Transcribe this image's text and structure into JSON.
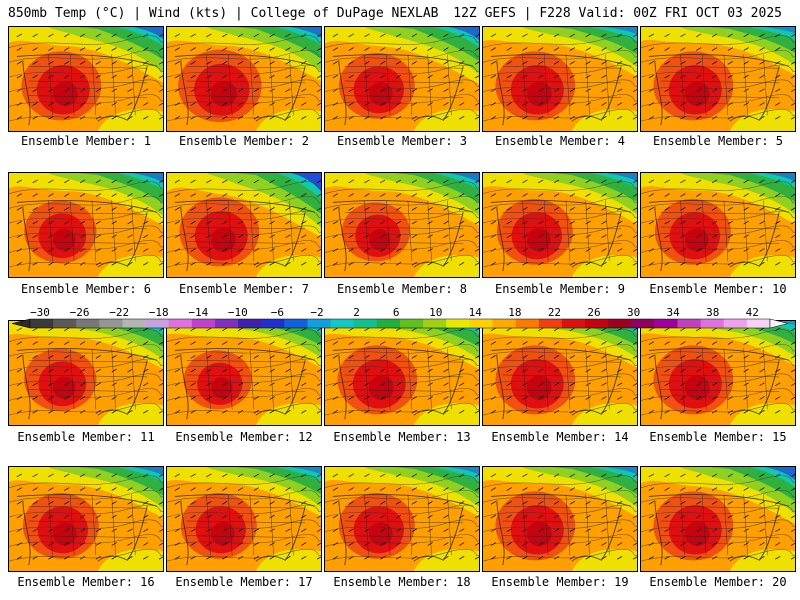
{
  "header": {
    "left": "850mb Temp (°C) | Wind (kts) | College of DuPage NEXLAB",
    "right": "12Z GEFS | F228 Valid: 00Z FRI OCT 03 2025"
  },
  "members": [
    {
      "label": "Ensemble Member: 1",
      "warm_level": 0.8,
      "cold_level": 0.55
    },
    {
      "label": "Ensemble Member: 2",
      "warm_level": 0.85,
      "cold_level": 0.5
    },
    {
      "label": "Ensemble Member: 3",
      "warm_level": 0.75,
      "cold_level": 0.6
    },
    {
      "label": "Ensemble Member: 4",
      "warm_level": 0.8,
      "cold_level": 0.35
    },
    {
      "label": "Ensemble Member: 5",
      "warm_level": 0.8,
      "cold_level": 0.3
    },
    {
      "label": "Ensemble Member: 6",
      "warm_level": 0.7,
      "cold_level": 0.45
    },
    {
      "label": "Ensemble Member: 7",
      "warm_level": 0.8,
      "cold_level": 0.85
    },
    {
      "label": "Ensemble Member: 8",
      "warm_level": 0.65,
      "cold_level": 0.45
    },
    {
      "label": "Ensemble Member: 9",
      "warm_level": 0.75,
      "cold_level": 0.4
    },
    {
      "label": "Ensemble Member: 10",
      "warm_level": 0.75,
      "cold_level": 0.4
    },
    {
      "label": "Ensemble Member: 11",
      "warm_level": 0.7,
      "cold_level": 0.3
    },
    {
      "label": "Ensemble Member: 12",
      "warm_level": 0.65,
      "cold_level": 0.25
    },
    {
      "label": "Ensemble Member: 13",
      "warm_level": 0.8,
      "cold_level": 0.3
    },
    {
      "label": "Ensemble Member: 14",
      "warm_level": 0.8,
      "cold_level": 0.25
    },
    {
      "label": "Ensemble Member: 15",
      "warm_level": 0.8,
      "cold_level": 0.2
    },
    {
      "label": "Ensemble Member: 16",
      "warm_level": 0.75,
      "cold_level": 0.4
    },
    {
      "label": "Ensemble Member: 17",
      "warm_level": 0.75,
      "cold_level": 0.35
    },
    {
      "label": "Ensemble Member: 18",
      "warm_level": 0.75,
      "cold_level": 0.35
    },
    {
      "label": "Ensemble Member: 19",
      "warm_level": 0.8,
      "cold_level": 0.35
    },
    {
      "label": "Ensemble Member: 20",
      "warm_level": 0.8,
      "cold_level": 0.6
    }
  ],
  "colorbar": {
    "ticks": [
      "−30",
      "−26",
      "−22",
      "−18",
      "−14",
      "−10",
      "−6",
      "−2",
      "2",
      "6",
      "10",
      "14",
      "18",
      "22",
      "26",
      "30",
      "34",
      "38",
      "42"
    ],
    "colors": [
      "#3a3a3a",
      "#5a5a5a",
      "#787878",
      "#969696",
      "#b4b4b4",
      "#c8a0e0",
      "#e070e0",
      "#c040d0",
      "#8030c0",
      "#4020b0",
      "#2030d0",
      "#1060e0",
      "#10a0e0",
      "#10c8c8",
      "#10c090",
      "#20b040",
      "#60c020",
      "#a0d010",
      "#e8e800",
      "#ffd000",
      "#ffa800",
      "#ff7800",
      "#f04010",
      "#e01010",
      "#c80010",
      "#a00020",
      "#900060",
      "#a000a0",
      "#c040c0",
      "#e070e0",
      "#f0a0f0",
      "#f8d0f8"
    ],
    "palette": {
      "cold1": "#1020b0",
      "cold2": "#2050d8",
      "cold3": "#10a0e0",
      "teal": "#10c8b0",
      "green": "#30b040",
      "lime": "#90d020",
      "yellow": "#f0e000",
      "orange": "#ffa000",
      "red1": "#f05010",
      "red2": "#e01010",
      "dark": "#c00010"
    }
  }
}
